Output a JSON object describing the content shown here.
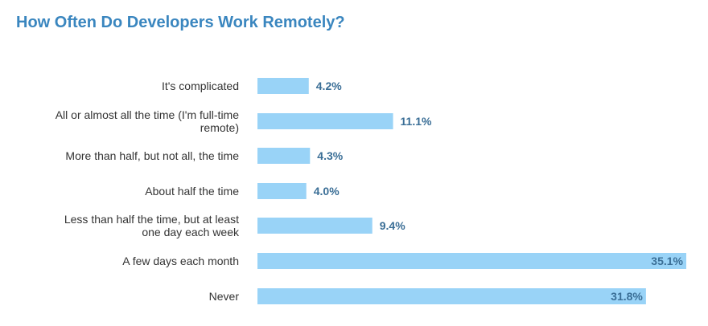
{
  "chart_data": {
    "type": "bar",
    "orientation": "horizontal",
    "title": "How Often Do Developers Work Remotely?",
    "categories": [
      "It's complicated",
      "All or almost all the time (I'm full-time remote)",
      "More than half, but not all, the time",
      "About half the time",
      "Less than half the time, but at least one day each week",
      "A few days each month",
      "Never"
    ],
    "values": [
      4.2,
      11.1,
      4.3,
      4.0,
      9.4,
      35.1,
      31.8
    ],
    "value_labels": [
      "4.2%",
      "11.1%",
      "4.3%",
      "4.0%",
      "9.4%",
      "35.1%",
      "31.8%"
    ],
    "xlim": [
      0,
      35.1
    ],
    "grid": false,
    "legend": "none",
    "colors": {
      "bar": "#99d3f7",
      "value_text": "#3a6e96",
      "title": "#3a86bf",
      "category_text": "#333333"
    }
  }
}
